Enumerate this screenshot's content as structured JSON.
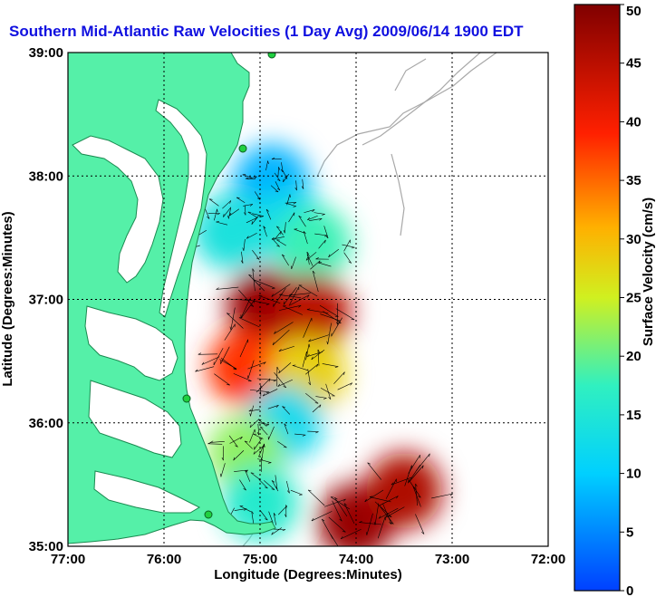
{
  "chart_data": {
    "type": "heatmap",
    "title": "Southern Mid-Atlantic Raw Velocities (1 Day Avg) 2009/06/14 1900 EDT",
    "xlabel": "Longitude (Degrees:Minutes)",
    "ylabel": "Latitude (Degrees:Minutes)",
    "xlim": [
      -77,
      -72
    ],
    "ylim": [
      35,
      39
    ],
    "x_ticks": [
      {
        "value": -77,
        "label": "77:00"
      },
      {
        "value": -76,
        "label": "76:00"
      },
      {
        "value": -75,
        "label": "75:00"
      },
      {
        "value": -74,
        "label": "74:00"
      },
      {
        "value": -73,
        "label": "73:00"
      },
      {
        "value": -72,
        "label": "72:00"
      }
    ],
    "y_ticks": [
      {
        "value": 35,
        "label": "35:00"
      },
      {
        "value": 36,
        "label": "36:00"
      },
      {
        "value": 37,
        "label": "37:00"
      },
      {
        "value": 38,
        "label": "38:00"
      },
      {
        "value": 39,
        "label": "39:00"
      }
    ],
    "grid": true,
    "colorbar": {
      "label": "Surface Velocity (cm/s)",
      "range": [
        0,
        50
      ],
      "ticks": [
        "0",
        "5",
        "10",
        "15",
        "20",
        "25",
        "30",
        "35",
        "40",
        "45",
        "50"
      ],
      "position": "right"
    },
    "colors": {
      "land": "#55f0a8",
      "coast_line": "#1a8a50",
      "bathymetry": "#a8a8a8",
      "vectors": "#000000",
      "title": "#1010e0"
    },
    "velocity_regions": [
      {
        "lon": -74.88,
        "lat": 37.95,
        "speed": 8
      },
      {
        "lon": -74.7,
        "lat": 37.6,
        "speed": 12
      },
      {
        "lon": -75.3,
        "lat": 37.55,
        "speed": 14
      },
      {
        "lon": -74.45,
        "lat": 37.45,
        "speed": 18
      },
      {
        "lon": -74.95,
        "lat": 36.95,
        "speed": 48
      },
      {
        "lon": -74.45,
        "lat": 36.9,
        "speed": 45
      },
      {
        "lon": -75.15,
        "lat": 36.45,
        "speed": 38
      },
      {
        "lon": -74.5,
        "lat": 36.4,
        "speed": 28
      },
      {
        "lon": -74.75,
        "lat": 36.0,
        "speed": 12
      },
      {
        "lon": -75.15,
        "lat": 35.75,
        "speed": 22
      },
      {
        "lon": -75.0,
        "lat": 35.35,
        "speed": 16
      },
      {
        "lon": -74.0,
        "lat": 35.2,
        "speed": 48
      },
      {
        "lon": -73.5,
        "lat": 35.45,
        "speed": 46
      }
    ]
  }
}
